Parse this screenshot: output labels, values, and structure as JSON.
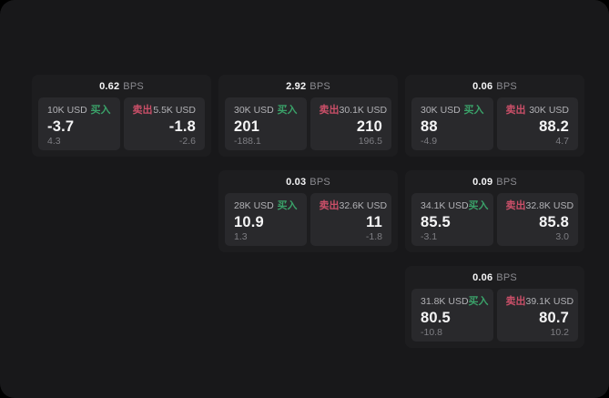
{
  "colors": {
    "window_bg": "#18181a",
    "card_bg": "#1d1d1f",
    "panel_bg": "#29292c",
    "buy_color": "#3aa169",
    "sell_color": "#ca4f68",
    "value_text": "#f5f5f6",
    "muted_text": "#8b8b90"
  },
  "cards": [
    {
      "bps_value": "0.62",
      "bps_unit": "BPS",
      "buy": {
        "size": "10K USD",
        "side_label": "买入",
        "price": "-3.7",
        "delta": "4.3"
      },
      "sell": {
        "side_label": "卖出",
        "size": "5.5K USD",
        "price": "-1.8",
        "delta": "-2.6"
      }
    },
    {
      "bps_value": "2.92",
      "bps_unit": "BPS",
      "buy": {
        "size": "30K USD",
        "side_label": "买入",
        "price": "201",
        "delta": "-188.1"
      },
      "sell": {
        "side_label": "卖出",
        "size": "30.1K USD",
        "price": "210",
        "delta": "196.5"
      }
    },
    {
      "bps_value": "0.06",
      "bps_unit": "BPS",
      "buy": {
        "size": "30K USD",
        "side_label": "买入",
        "price": "88",
        "delta": "-4.9"
      },
      "sell": {
        "side_label": "卖出",
        "size": "30K USD",
        "price": "88.2",
        "delta": "4.7"
      }
    },
    {
      "bps_value": "0.03",
      "bps_unit": "BPS",
      "buy": {
        "size": "28K USD",
        "side_label": "买入",
        "price": "10.9",
        "delta": "1.3"
      },
      "sell": {
        "side_label": "卖出",
        "size": "32.6K USD",
        "price": "11",
        "delta": "-1.8"
      }
    },
    {
      "bps_value": "0.09",
      "bps_unit": "BPS",
      "buy": {
        "size": "34.1K USD",
        "side_label": "买入",
        "price": "85.5",
        "delta": "-3.1"
      },
      "sell": {
        "side_label": "卖出",
        "size": "32.8K USD",
        "price": "85.8",
        "delta": "3.0"
      }
    },
    {
      "bps_value": "0.06",
      "bps_unit": "BPS",
      "buy": {
        "size": "31.8K USD",
        "side_label": "买入",
        "price": "80.5",
        "delta": "-10.8"
      },
      "sell": {
        "side_label": "卖出",
        "size": "39.1K USD",
        "price": "80.7",
        "delta": "10.2"
      }
    }
  ]
}
